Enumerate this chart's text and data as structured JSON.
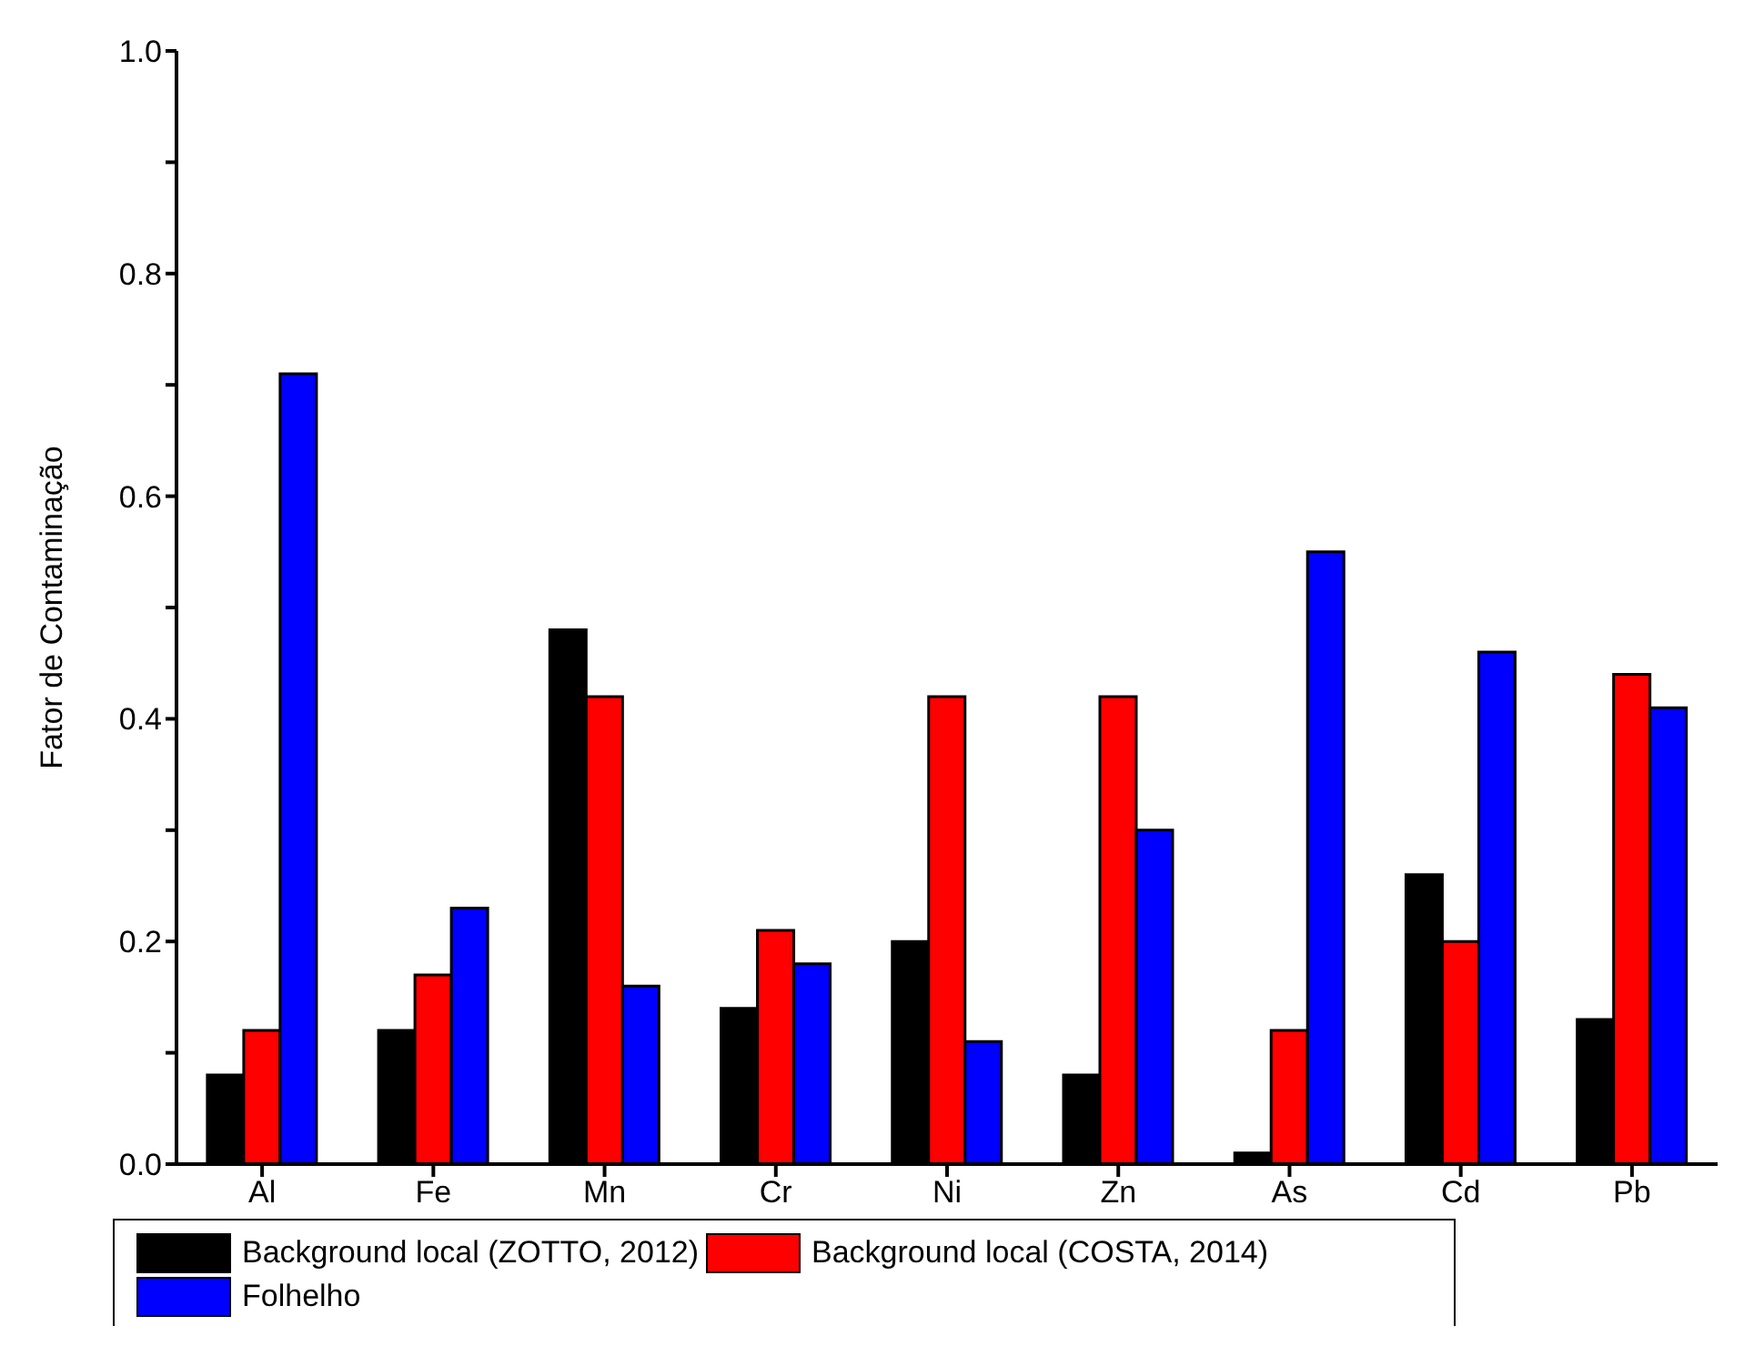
{
  "chart_data": {
    "type": "bar",
    "ylabel": "Fator de Contaminação",
    "categories": [
      "Al",
      "Fe",
      "Mn",
      "Cr",
      "Ni",
      "Zn",
      "As",
      "Cd",
      "Pb"
    ],
    "series": [
      {
        "name": "Background local (ZOTTO, 2012)",
        "color": "#000000",
        "values": [
          0.08,
          0.12,
          0.48,
          0.14,
          0.2,
          0.08,
          0.01,
          0.26,
          0.13
        ]
      },
      {
        "name": "Background local (COSTA, 2014)",
        "color": "#ff0000",
        "values": [
          0.12,
          0.17,
          0.42,
          0.21,
          0.42,
          0.42,
          0.12,
          0.2,
          0.44
        ]
      },
      {
        "name": "Folhelho",
        "color": "#0000ff",
        "values": [
          0.71,
          0.23,
          0.16,
          0.18,
          0.11,
          0.3,
          0.55,
          0.46,
          0.41
        ]
      }
    ],
    "ylim": [
      0,
      1
    ],
    "yticks": [
      {
        "value": 0,
        "label": "0.0"
      },
      {
        "value": 0.1,
        "label": null
      },
      0.2,
      {
        "value": 0.3,
        "label": null
      },
      0.4,
      {
        "value": 0.5,
        "label": null
      },
      0.6,
      {
        "value": 0.7,
        "label": null
      },
      0.8,
      {
        "value": 0.9,
        "label": null
      },
      {
        "value": 1,
        "label": "1.0"
      }
    ],
    "grid": false,
    "legend": "bottom"
  }
}
